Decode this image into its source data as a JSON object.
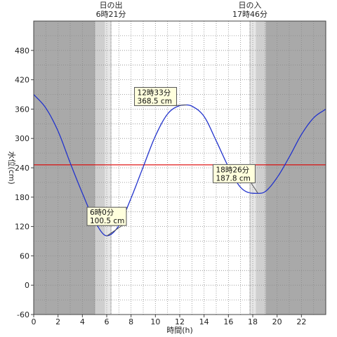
{
  "chart_data": {
    "type": "line",
    "xlabel": "時間(h)",
    "ylabel": "水位(cm)",
    "xlim": [
      0,
      24
    ],
    "ylim": [
      -60,
      540
    ],
    "x_ticks": [
      0,
      2,
      4,
      6,
      8,
      10,
      12,
      14,
      16,
      18,
      20,
      22
    ],
    "y_ticks": [
      -60,
      0,
      60,
      120,
      180,
      240,
      300,
      360,
      420,
      480
    ],
    "grid": true,
    "sunrise": {
      "label": "日の出",
      "time_label": "6時21分",
      "hour": 6.35
    },
    "sunset": {
      "label": "日の入",
      "time_label": "17時46分",
      "hour": 17.77
    },
    "reference_line": {
      "value": 246,
      "color": "#dd0000"
    },
    "series": [
      {
        "color": "#2233cc",
        "x": [
          0,
          1,
          2,
          3,
          4,
          5,
          6,
          7,
          8,
          9,
          10,
          11,
          12,
          12.55,
          13,
          14,
          15,
          16,
          17,
          18,
          18.43,
          19,
          20,
          21,
          22,
          23,
          24
        ],
        "y": [
          390,
          362,
          315,
          250,
          188,
          132,
          101,
          122,
          178,
          242,
          305,
          350,
          367,
          368.5,
          366,
          345,
          295,
          242,
          200,
          188,
          187.8,
          191,
          220,
          262,
          308,
          342,
          360
        ]
      }
    ],
    "annotations": [
      {
        "time": "6時0分",
        "value": "100.5 cm",
        "x": 6.0,
        "y": 100.5
      },
      {
        "time": "12時33分",
        "value": "368.5 cm",
        "x": 12.55,
        "y": 368.5
      },
      {
        "time": "18時26分",
        "value": "187.8 cm",
        "x": 18.43,
        "y": 187.8
      }
    ]
  }
}
